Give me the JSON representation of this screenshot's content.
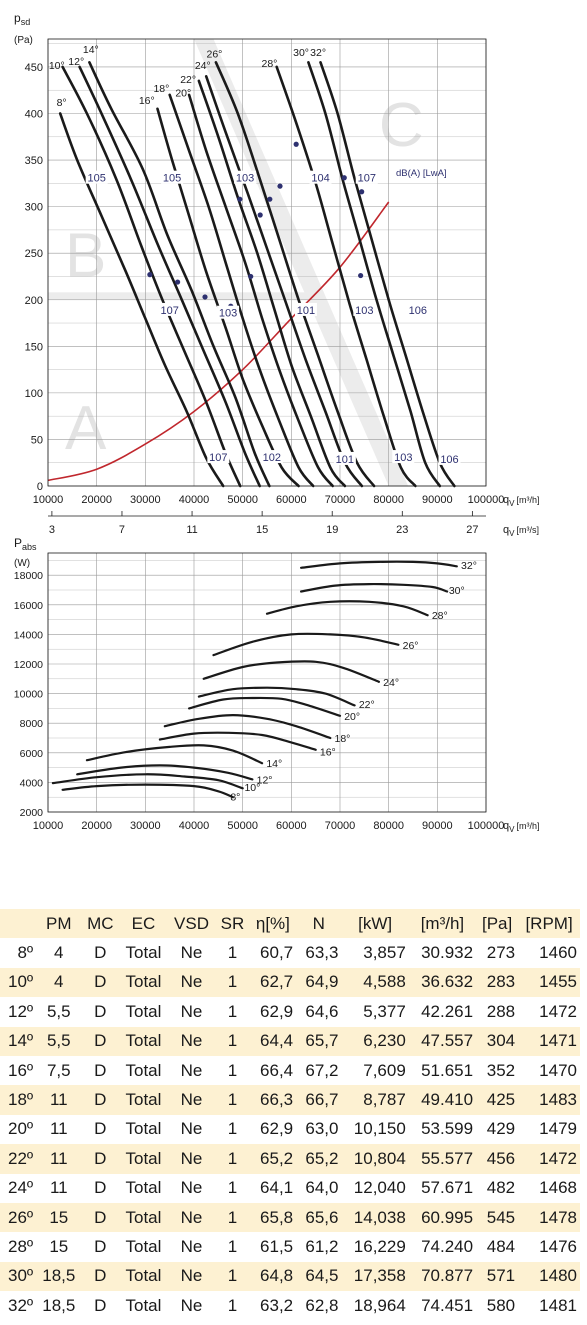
{
  "colors": {
    "curve": "#1a1a1a",
    "system_curve": "#c0272d",
    "noise_label": "#2e3170",
    "zone_letters": "#e3e3e3",
    "table_stripe": "#fdf1d2"
  },
  "chart_data": [
    {
      "type": "line",
      "ylabel_main": "p",
      "ylabel_sub": "sd",
      "ylabel_unit": "(Pa)",
      "xlabel": "q",
      "xlabel_sub": "V",
      "xlabel_unit": "[m³/h]",
      "x2label": "q",
      "x2label_sub": "V",
      "x2label_unit": "[m³/s]",
      "xlim": [
        10000,
        100000
      ],
      "ylim": [
        0,
        480
      ],
      "xticks": [
        "10000",
        "20000",
        "30000",
        "40000",
        "50000",
        "60000",
        "70000",
        "80000",
        "90000",
        "100000"
      ],
      "yticks": [
        "0",
        "50",
        "100",
        "150",
        "200",
        "250",
        "300",
        "350",
        "400",
        "450"
      ],
      "x2ticks": [
        "3",
        "7",
        "11",
        "15",
        "19",
        "23",
        "27"
      ],
      "grid": true,
      "zones": [
        "A",
        "B",
        "C"
      ],
      "noise_unit": "dB(A) [LwA]",
      "series": [
        {
          "name": "8°",
          "x": [
            12500,
            16000,
            21000,
            26000,
            30000,
            34000,
            38500,
            42500,
            46000
          ],
          "y": [
            400,
            350,
            290,
            230,
            180,
            130,
            80,
            30,
            0
          ]
        },
        {
          "name": "10°",
          "x": [
            13000,
            18000,
            24000,
            29000,
            33500,
            38000,
            42500,
            46500,
            49500
          ],
          "y": [
            450,
            400,
            330,
            260,
            200,
            145,
            90,
            35,
            0
          ]
        },
        {
          "name": "12°",
          "x": [
            16500,
            21000,
            27000,
            32500,
            37500,
            42000,
            46500,
            50500,
            53500
          ],
          "y": [
            450,
            400,
            330,
            260,
            200,
            145,
            90,
            35,
            0
          ]
        },
        {
          "name": "14°",
          "x": [
            18500,
            23000,
            29500,
            34500,
            39500,
            44000,
            48500,
            52500,
            55500
          ],
          "y": [
            455,
            405,
            340,
            270,
            210,
            150,
            95,
            35,
            0
          ]
        },
        {
          "name": "16°",
          "x": [
            32500,
            35500,
            39000,
            42500,
            46500,
            50000,
            54000,
            58000,
            61500
          ],
          "y": [
            405,
            350,
            290,
            230,
            170,
            115,
            65,
            20,
            0
          ]
        },
        {
          "name": "18°",
          "x": [
            35000,
            39000,
            43000,
            46500,
            50000,
            53500,
            57500,
            61500,
            64500
          ],
          "y": [
            420,
            360,
            300,
            240,
            180,
            125,
            70,
            20,
            0
          ]
        },
        {
          "name": "20°",
          "x": [
            39000,
            42500,
            46500,
            50500,
            54000,
            57500,
            61500,
            65500,
            68500
          ],
          "y": [
            420,
            360,
            300,
            240,
            180,
            125,
            70,
            20,
            0
          ]
        },
        {
          "name": "22°",
          "x": [
            41000,
            45000,
            49000,
            53000,
            56500,
            60000,
            64000,
            68000,
            71000
          ],
          "y": [
            435,
            375,
            310,
            250,
            190,
            130,
            75,
            20,
            0
          ]
        },
        {
          "name": "24°",
          "x": [
            42500,
            46500,
            51000,
            55000,
            59000,
            63000,
            67000,
            71000,
            74500
          ],
          "y": [
            440,
            380,
            315,
            255,
            195,
            135,
            80,
            25,
            0
          ]
        },
        {
          "name": "26°",
          "x": [
            44500,
            49000,
            53500,
            57500,
            61500,
            65500,
            69500,
            73500,
            77000
          ],
          "y": [
            455,
            400,
            330,
            265,
            200,
            140,
            80,
            25,
            0
          ]
        },
        {
          "name": "28°",
          "x": [
            57000,
            61000,
            65000,
            68500,
            72000,
            75500,
            79000,
            82500,
            85500
          ],
          "y": [
            450,
            390,
            325,
            260,
            195,
            135,
            75,
            20,
            0
          ]
        },
        {
          "name": "30°",
          "x": [
            63500,
            67000,
            70500,
            74000,
            77500,
            81000,
            84500,
            87500,
            90500
          ],
          "y": [
            455,
            400,
            330,
            265,
            200,
            140,
            80,
            25,
            0
          ]
        },
        {
          "name": "32°",
          "x": [
            66000,
            69500,
            73000,
            76500,
            80000,
            83500,
            87000,
            90500,
            93500
          ],
          "y": [
            455,
            400,
            330,
            265,
            200,
            140,
            80,
            25,
            0
          ]
        }
      ],
      "system_curve": {
        "x": [
          10000,
          20000,
          30000,
          40000,
          50000,
          60000,
          70000,
          80000
        ],
        "y": [
          6,
          18,
          45,
          80,
          125,
          180,
          235,
          305
        ]
      },
      "operating_points": [
        {
          "x": 30932,
          "y": 227
        },
        {
          "x": 36632,
          "y": 219
        },
        {
          "x": 42261,
          "y": 203
        },
        {
          "x": 47557,
          "y": 193
        },
        {
          "x": 51651,
          "y": 225
        },
        {
          "x": 49410,
          "y": 308
        },
        {
          "x": 53599,
          "y": 291
        },
        {
          "x": 55577,
          "y": 308
        },
        {
          "x": 57671,
          "y": 322
        },
        {
          "x": 60995,
          "y": 367
        },
        {
          "x": 74240,
          "y": 226
        },
        {
          "x": 70877,
          "y": 331
        },
        {
          "x": 74451,
          "y": 316
        }
      ],
      "noise_labels": [
        {
          "text": "105",
          "x": 20000,
          "y": 330
        },
        {
          "text": "105",
          "x": 35500,
          "y": 330
        },
        {
          "text": "103",
          "x": 50500,
          "y": 330
        },
        {
          "text": "104",
          "x": 66000,
          "y": 330
        },
        {
          "text": "107",
          "x": 75500,
          "y": 330
        },
        {
          "text": "107",
          "x": 35000,
          "y": 188
        },
        {
          "text": "103",
          "x": 47000,
          "y": 185
        },
        {
          "text": "101",
          "x": 63000,
          "y": 188
        },
        {
          "text": "103",
          "x": 75000,
          "y": 188
        },
        {
          "text": "106",
          "x": 86000,
          "y": 188
        },
        {
          "text": "107",
          "x": 45000,
          "y": 30
        },
        {
          "text": "102",
          "x": 56000,
          "y": 30
        },
        {
          "text": "101",
          "x": 71000,
          "y": 28
        },
        {
          "text": "103",
          "x": 83000,
          "y": 30
        },
        {
          "text": "106",
          "x": 92500,
          "y": 28
        }
      ],
      "angle_labels": [
        {
          "text": "8°",
          "x": 12800,
          "y": 408
        },
        {
          "text": "10°",
          "x": 11800,
          "y": 448
        },
        {
          "text": "12°",
          "x": 15800,
          "y": 452
        },
        {
          "text": "14°",
          "x": 18800,
          "y": 465
        },
        {
          "text": "16°",
          "x": 30300,
          "y": 410
        },
        {
          "text": "18°",
          "x": 33300,
          "y": 423
        },
        {
          "text": "20°",
          "x": 37800,
          "y": 418
        },
        {
          "text": "22°",
          "x": 38800,
          "y": 433
        },
        {
          "text": "24°",
          "x": 41800,
          "y": 448
        },
        {
          "text": "26°",
          "x": 44200,
          "y": 460
        },
        {
          "text": "28°",
          "x": 55500,
          "y": 450
        },
        {
          "text": "30°",
          "x": 62000,
          "y": 462
        },
        {
          "text": "32°",
          "x": 65500,
          "y": 462
        }
      ]
    },
    {
      "type": "line",
      "ylabel_main": "P",
      "ylabel_sub": "abs",
      "ylabel_unit": "(W)",
      "xlabel": "q",
      "xlabel_sub": "V",
      "xlabel_unit": "[m³/h]",
      "xlim": [
        10000,
        100000
      ],
      "ylim": [
        2000,
        19500
      ],
      "xticks": [
        "10000",
        "20000",
        "30000",
        "40000",
        "50000",
        "60000",
        "70000",
        "80000",
        "90000",
        "100000"
      ],
      "yticks": [
        "2000",
        "4000",
        "6000",
        "8000",
        "10000",
        "12000",
        "14000",
        "16000",
        "18000"
      ],
      "grid": true,
      "series": [
        {
          "name": "8°",
          "x": [
            13000,
            20000,
            30000,
            40000,
            45000,
            48000
          ],
          "y": [
            3500,
            3750,
            3850,
            3750,
            3400,
            3000
          ]
        },
        {
          "name": "10°",
          "x": [
            11000,
            20000,
            30000,
            38000,
            45000,
            50000
          ],
          "y": [
            3950,
            4350,
            4550,
            4400,
            4150,
            3600
          ]
        },
        {
          "name": "12°",
          "x": [
            16000,
            25000,
            33000,
            40000,
            47000,
            52000
          ],
          "y": [
            4550,
            5000,
            5150,
            5000,
            4650,
            4200
          ]
        },
        {
          "name": "14°",
          "x": [
            18000,
            26000,
            35000,
            42000,
            48000,
            54000
          ],
          "y": [
            5500,
            6050,
            6400,
            6500,
            6150,
            5300
          ]
        },
        {
          "name": "16°",
          "x": [
            33000,
            40000,
            47000,
            54000,
            60000,
            65000
          ],
          "y": [
            6900,
            7300,
            7350,
            7200,
            6700,
            6200
          ]
        },
        {
          "name": "18°",
          "x": [
            34000,
            41000,
            48000,
            55000,
            61000,
            68000
          ],
          "y": [
            7800,
            8300,
            8550,
            8300,
            7800,
            7000
          ]
        },
        {
          "name": "20°",
          "x": [
            39000,
            46000,
            52000,
            58000,
            63000,
            70000
          ],
          "y": [
            9000,
            9600,
            9700,
            9650,
            9250,
            8500
          ]
        },
        {
          "name": "22°",
          "x": [
            41000,
            48000,
            55000,
            61000,
            67000,
            73000
          ],
          "y": [
            9800,
            10300,
            10400,
            10300,
            10000,
            9200
          ]
        },
        {
          "name": "24°",
          "x": [
            42000,
            50000,
            57000,
            65000,
            71000,
            78000
          ],
          "y": [
            11000,
            11800,
            12100,
            12150,
            11700,
            10800
          ]
        },
        {
          "name": "26°",
          "x": [
            44000,
            52000,
            60000,
            68000,
            75000,
            82000
          ],
          "y": [
            12600,
            13500,
            14000,
            14000,
            13800,
            13300
          ]
        },
        {
          "name": "28°",
          "x": [
            55000,
            61000,
            68000,
            76000,
            83000,
            88000
          ],
          "y": [
            15400,
            15900,
            16200,
            16200,
            15900,
            15300
          ]
        },
        {
          "name": "30°",
          "x": [
            62000,
            69000,
            76000,
            83000,
            89000,
            92000
          ],
          "y": [
            16900,
            17300,
            17400,
            17350,
            17200,
            16900
          ]
        },
        {
          "name": "32°",
          "x": [
            62000,
            70000,
            78000,
            85000,
            90000,
            94000
          ],
          "y": [
            18500,
            18800,
            18900,
            18900,
            18800,
            18600
          ]
        }
      ],
      "angle_labels": [
        {
          "text": "8°",
          "x": 48500,
          "y": 3050
        },
        {
          "text": "10°",
          "x": 52000,
          "y": 3700
        },
        {
          "text": "12°",
          "x": 54500,
          "y": 4200
        },
        {
          "text": "14°",
          "x": 56500,
          "y": 5300
        },
        {
          "text": "16°",
          "x": 67500,
          "y": 6100
        },
        {
          "text": "18°",
          "x": 70500,
          "y": 7000
        },
        {
          "text": "20°",
          "x": 72500,
          "y": 8500
        },
        {
          "text": "22°",
          "x": 75500,
          "y": 9300
        },
        {
          "text": "24°",
          "x": 80500,
          "y": 10800
        },
        {
          "text": "26°",
          "x": 84500,
          "y": 13300
        },
        {
          "text": "28°",
          "x": 90500,
          "y": 15300
        },
        {
          "text": "30°",
          "x": 94000,
          "y": 17000
        },
        {
          "text": "32°",
          "x": 96500,
          "y": 18700
        }
      ]
    },
    {
      "type": "table",
      "headers": [
        "",
        "PM",
        "MC",
        "EC",
        "VSD",
        "SR",
        "η[%]",
        "N",
        "[kW]",
        "[m³/h]",
        "[Pa]",
        "[RPM]"
      ],
      "rows": [
        [
          "8º",
          "4",
          "D",
          "Total",
          "Ne",
          "1",
          "60,7",
          "63,3",
          "3,857",
          "30.932",
          "273",
          "1460"
        ],
        [
          "10º",
          "4",
          "D",
          "Total",
          "Ne",
          "1",
          "62,7",
          "64,9",
          "4,588",
          "36.632",
          "283",
          "1455"
        ],
        [
          "12º",
          "5,5",
          "D",
          "Total",
          "Ne",
          "1",
          "62,9",
          "64,6",
          "5,377",
          "42.261",
          "288",
          "1472"
        ],
        [
          "14º",
          "5,5",
          "D",
          "Total",
          "Ne",
          "1",
          "64,4",
          "65,7",
          "6,230",
          "47.557",
          "304",
          "1471"
        ],
        [
          "16º",
          "7,5",
          "D",
          "Total",
          "Ne",
          "1",
          "66,4",
          "67,2",
          "7,609",
          "51.651",
          "352",
          "1470"
        ],
        [
          "18º",
          "11",
          "D",
          "Total",
          "Ne",
          "1",
          "66,3",
          "66,7",
          "8,787",
          "49.410",
          "425",
          "1483"
        ],
        [
          "20º",
          "11",
          "D",
          "Total",
          "Ne",
          "1",
          "62,9",
          "63,0",
          "10,150",
          "53.599",
          "429",
          "1479"
        ],
        [
          "22º",
          "11",
          "D",
          "Total",
          "Ne",
          "1",
          "65,2",
          "65,2",
          "10,804",
          "55.577",
          "456",
          "1472"
        ],
        [
          "24º",
          "11",
          "D",
          "Total",
          "Ne",
          "1",
          "64,1",
          "64,0",
          "12,040",
          "57.671",
          "482",
          "1468"
        ],
        [
          "26º",
          "15",
          "D",
          "Total",
          "Ne",
          "1",
          "65,8",
          "65,6",
          "14,038",
          "60.995",
          "545",
          "1478"
        ],
        [
          "28º",
          "15",
          "D",
          "Total",
          "Ne",
          "1",
          "61,5",
          "61,2",
          "16,229",
          "74.240",
          "484",
          "1476"
        ],
        [
          "30º",
          "18,5",
          "D",
          "Total",
          "Ne",
          "1",
          "64,8",
          "64,5",
          "17,358",
          "70.877",
          "571",
          "1480"
        ],
        [
          "32º",
          "18,5",
          "D",
          "Total",
          "Ne",
          "1",
          "63,2",
          "62,8",
          "18,964",
          "74.451",
          "580",
          "1481"
        ]
      ]
    }
  ]
}
